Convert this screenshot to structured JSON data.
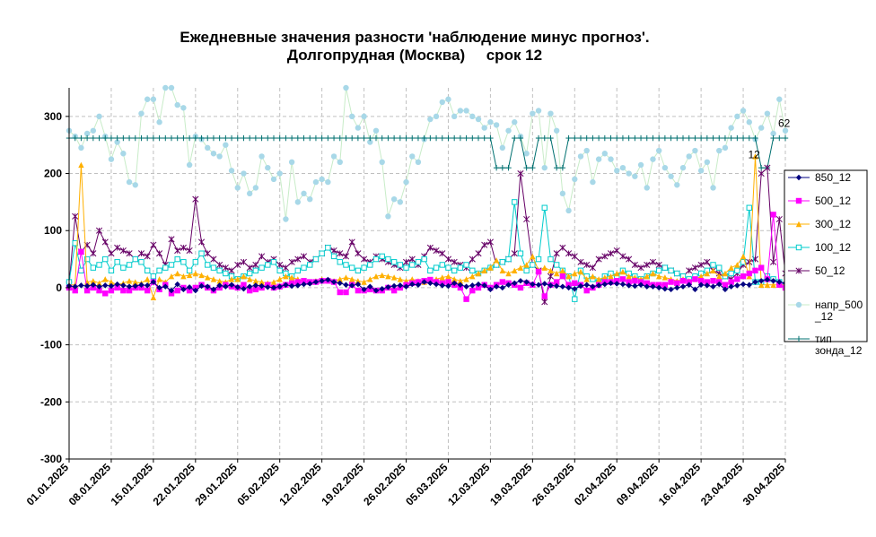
{
  "chart_data": {
    "type": "line",
    "title_line1": "Ежедневные значения разности 'наблюдение минус прогноз'.",
    "title_line2": "Долгопрудная (Москва)     срок 12",
    "ylim": [
      -300,
      350
    ],
    "yticks": [
      -300,
      -200,
      -100,
      0,
      100,
      200,
      300
    ],
    "ytick_labels": [
      "-300",
      "-200",
      "-100",
      "0",
      "100",
      "200",
      "300"
    ],
    "xlim": [
      0,
      119
    ],
    "xticks": [
      0,
      7,
      14,
      21,
      28,
      35,
      42,
      49,
      56,
      63,
      70,
      77,
      84,
      91,
      98,
      105,
      112,
      119
    ],
    "xtick_labels": [
      "01.01.2025",
      "08.01.2025",
      "15.01.2025",
      "22.01.2025",
      "29.01.2025",
      "05.02.2025",
      "12.02.2025",
      "19.02.2025",
      "26.02.2025",
      "05.03.2025",
      "12.03.2025",
      "19.03.2025",
      "26.03.2025",
      "02.04.2025",
      "09.04.2025",
      "16.04.2025",
      "23.04.2025",
      "30.04.2025"
    ],
    "grid": true,
    "legend_position": "right",
    "annotations": [
      {
        "text": "62",
        "x": 119,
        "y": 288
      },
      {
        "text": "12",
        "x": 114,
        "y": 233
      }
    ],
    "series": [
      {
        "name": "850_12",
        "color": "#000080",
        "marker": "diamond",
        "values": [
          3,
          2,
          4,
          3,
          5,
          2,
          4,
          3,
          6,
          4,
          2,
          3,
          5,
          4,
          10,
          0,
          2,
          -5,
          6,
          -3,
          1,
          -5,
          3,
          2,
          -3,
          4,
          2,
          5,
          1,
          -2,
          2,
          4,
          3,
          1,
          0,
          2,
          5,
          3,
          4,
          6,
          7,
          10,
          12,
          14,
          10,
          8,
          5,
          4,
          6,
          -3,
          2,
          -5,
          -2,
          1,
          3,
          4,
          2,
          6,
          5,
          10,
          8,
          6,
          4,
          3,
          8,
          5,
          2,
          4,
          6,
          4,
          -3,
          2,
          0,
          5,
          8,
          12,
          10,
          6,
          5,
          7,
          4,
          3,
          2,
          0,
          -2,
          3,
          5,
          2,
          4,
          6,
          8,
          7,
          6,
          4,
          3,
          5,
          2,
          2,
          0,
          -2,
          -3,
          0,
          2,
          5,
          -3,
          5,
          4,
          2,
          6,
          -3,
          2,
          4,
          6,
          5,
          10,
          12,
          14,
          12,
          10,
          8,
          6,
          4,
          2,
          -3
        ]
      },
      {
        "name": "500_12",
        "color": "#ff00ff",
        "marker": "square",
        "values": [
          0,
          -5,
          63,
          -5,
          0,
          -5,
          -10,
          -5,
          0,
          -5,
          -5,
          0,
          0,
          -5,
          10,
          -3,
          5,
          -10,
          -5,
          0,
          -5,
          0,
          5,
          0,
          -5,
          0,
          5,
          2,
          0,
          5,
          -5,
          -3,
          0,
          5,
          0,
          2,
          5,
          8,
          10,
          12,
          10,
          10,
          12,
          12,
          10,
          -8,
          -8,
          5,
          -5,
          -5,
          -3,
          -5,
          -5,
          0,
          -5,
          0,
          5,
          8,
          10,
          12,
          14,
          10,
          8,
          10,
          5,
          0,
          -20,
          -5,
          0,
          5,
          0,
          5,
          10,
          8,
          5,
          0,
          8,
          5,
          28,
          -15,
          5,
          10,
          20,
          5,
          8,
          5,
          -5,
          0,
          5,
          10,
          10,
          12,
          15,
          10,
          12,
          10,
          8,
          5,
          5,
          5,
          10,
          8,
          12,
          10,
          15,
          12,
          10,
          12,
          10,
          5,
          10,
          15,
          20,
          25,
          30,
          35,
          15,
          128,
          5,
          0
        ]
      },
      {
        "name": "300_12",
        "color": "#ffb000",
        "marker": "triangle",
        "values": [
          5,
          5,
          215,
          10,
          12,
          8,
          15,
          10,
          5,
          8,
          12,
          10,
          8,
          15,
          -17,
          15,
          10,
          20,
          25,
          20,
          22,
          25,
          22,
          18,
          15,
          12,
          10,
          15,
          15,
          20,
          15,
          12,
          10,
          8,
          10,
          15,
          20,
          18,
          15,
          12,
          10,
          12,
          15,
          14,
          12,
          15,
          18,
          15,
          12,
          10,
          15,
          20,
          22,
          20,
          18,
          15,
          12,
          15,
          12,
          10,
          12,
          15,
          18,
          20,
          15,
          12,
          15,
          20,
          25,
          30,
          35,
          48,
          30,
          25,
          30,
          35,
          40,
          55,
          30,
          35,
          30,
          25,
          30,
          20,
          25,
          28,
          15,
          20,
          15,
          18,
          20,
          25,
          28,
          20,
          18,
          15,
          20,
          25,
          20,
          18,
          15,
          12,
          15,
          12,
          15,
          20,
          25,
          30,
          20,
          25,
          35,
          40,
          55,
          20,
          230,
          5,
          5,
          5,
          5,
          5
        ]
      },
      {
        "name": "100_12",
        "color": "#00cccc",
        "marker": "square-open",
        "values": [
          10,
          78,
          30,
          50,
          35,
          40,
          50,
          30,
          45,
          35,
          40,
          50,
          45,
          30,
          20,
          30,
          35,
          40,
          50,
          45,
          30,
          45,
          60,
          40,
          35,
          30,
          25,
          20,
          15,
          20,
          25,
          30,
          35,
          40,
          45,
          30,
          25,
          20,
          30,
          35,
          40,
          50,
          60,
          70,
          55,
          45,
          40,
          35,
          30,
          35,
          40,
          50,
          55,
          50,
          45,
          40,
          35,
          40,
          45,
          50,
          30,
          35,
          40,
          35,
          30,
          35,
          40,
          30,
          25,
          30,
          35,
          40,
          45,
          50,
          150,
          60,
          30,
          40,
          50,
          140,
          50,
          40,
          30,
          20,
          -20,
          30,
          20,
          15,
          10,
          20,
          25,
          20,
          30,
          25,
          20,
          15,
          20,
          25,
          30,
          35,
          30,
          25,
          20,
          15,
          20,
          25,
          30,
          40,
          35,
          20,
          25,
          30,
          45,
          140,
          10,
          10,
          20,
          15,
          10,
          5
        ]
      },
      {
        "name": "50_12",
        "color": "#660066",
        "marker": "star",
        "values": [
          5,
          125,
          63,
          75,
          60,
          100,
          80,
          60,
          70,
          65,
          60,
          50,
          60,
          55,
          75,
          60,
          40,
          85,
          65,
          70,
          65,
          155,
          80,
          60,
          50,
          40,
          35,
          30,
          40,
          45,
          35,
          40,
          55,
          45,
          50,
          40,
          35,
          45,
          50,
          55,
          45,
          50,
          60,
          70,
          65,
          60,
          55,
          80,
          60,
          50,
          45,
          55,
          50,
          45,
          40,
          35,
          45,
          50,
          40,
          55,
          70,
          65,
          60,
          50,
          45,
          40,
          35,
          50,
          60,
          75,
          80,
          40,
          45,
          50,
          60,
          200,
          120,
          40,
          30,
          -25,
          20,
          60,
          70,
          60,
          55,
          45,
          40,
          35,
          50,
          55,
          60,
          65,
          55,
          50,
          40,
          35,
          40,
          45,
          40,
          35,
          30,
          25,
          20,
          30,
          35,
          40,
          45,
          30,
          25,
          20,
          15,
          25,
          40,
          45,
          50,
          200,
          210,
          45,
          120,
          25,
          20
        ]
      },
      {
        "name": "напр_500_12",
        "color": "#a8d8e8",
        "marker": "circle",
        "line_color": "#c8ecc8",
        "values": [
          275,
          265,
          245,
          270,
          275,
          300,
          265,
          225,
          255,
          235,
          185,
          180,
          305,
          330,
          330,
          290,
          350,
          350,
          320,
          315,
          215,
          265,
          260,
          245,
          235,
          230,
          250,
          205,
          175,
          200,
          165,
          175,
          230,
          210,
          190,
          200,
          120,
          220,
          150,
          165,
          155,
          185,
          190,
          185,
          230,
          220,
          350,
          300,
          280,
          300,
          255,
          275,
          220,
          125,
          155,
          150,
          185,
          230,
          220,
          260,
          295,
          300,
          325,
          330,
          300,
          310,
          310,
          300,
          295,
          280,
          290,
          285,
          245,
          275,
          290,
          265,
          235,
          305,
          310,
          210,
          305,
          275,
          165,
          135,
          190,
          230,
          240,
          185,
          225,
          235,
          225,
          205,
          210,
          200,
          195,
          215,
          175,
          225,
          240,
          210,
          195,
          180,
          210,
          230,
          240,
          205,
          220,
          175,
          240,
          245,
          280,
          300,
          310,
          290,
          260,
          280,
          305,
          270,
          330,
          275
        ]
      },
      {
        "name": "тип зонда_12",
        "color": "#007070",
        "marker": "plus",
        "values": [
          262,
          262,
          262,
          262,
          262,
          262,
          262,
          262,
          262,
          262,
          262,
          262,
          262,
          262,
          262,
          262,
          262,
          262,
          262,
          262,
          262,
          262,
          262,
          262,
          262,
          262,
          262,
          262,
          262,
          262,
          262,
          262,
          262,
          262,
          262,
          262,
          262,
          262,
          262,
          262,
          262,
          262,
          262,
          262,
          262,
          262,
          262,
          262,
          262,
          262,
          262,
          262,
          262,
          262,
          262,
          262,
          262,
          262,
          262,
          262,
          262,
          262,
          262,
          262,
          262,
          262,
          262,
          262,
          262,
          262,
          262,
          210,
          210,
          210,
          262,
          262,
          210,
          210,
          262,
          262,
          262,
          210,
          210,
          262,
          262,
          262,
          262,
          262,
          262,
          262,
          262,
          262,
          262,
          262,
          262,
          262,
          262,
          262,
          262,
          262,
          262,
          262,
          262,
          262,
          262,
          262,
          262,
          262,
          262,
          262,
          262,
          262,
          262,
          262,
          262,
          210,
          210,
          262,
          262,
          262
        ]
      }
    ]
  }
}
